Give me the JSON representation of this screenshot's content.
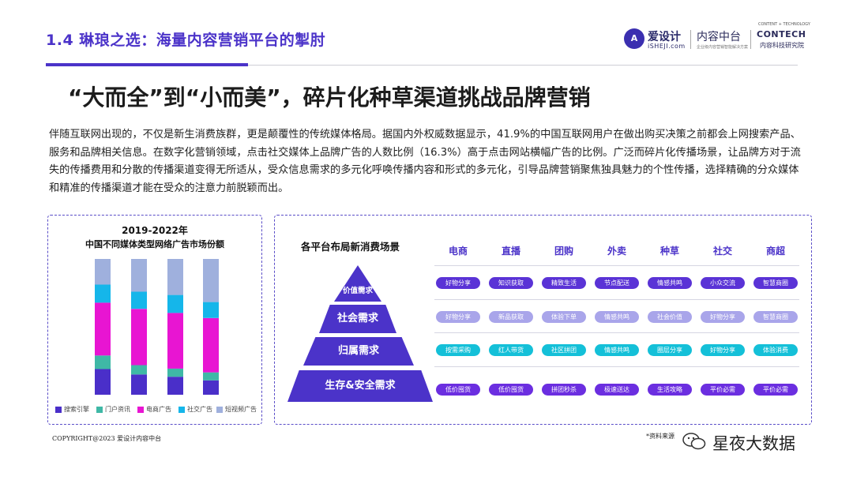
{
  "header": {
    "section_title": "1.4 琳琅之选：海量内容营销平台的掣肘",
    "logos": {
      "aishe_mark": "A",
      "aishe_cn": "爱设计",
      "aishe_en": "iSHEJI.com",
      "nrzt_cn": "内容中台",
      "nrzt_sub": "企业级内容营销智能解决方案",
      "contech_small": "CONTENT + TECHNOLOGY",
      "contech_big": "CONTECH",
      "contech_cn": "内容科技研究院"
    }
  },
  "main_heading": "“大而全”到“小而美”，碎片化种草渠道挑战品牌营销",
  "body_text": "伴随互联网出现的，不仅是新生消费族群，更是颠覆性的传统媒体格局。据国内外权威数据显示，41.9%的中国互联网用户在做出购买决策之前都会上网搜索产品、服务和品牌相关信息。在数字化营销领域，点击社交媒体上品牌广告的人数比例（16.3%）高于点击网站横幅广告的比例。广泛而碎片化传播场景，让品牌方对于流失的传播费用和分散的传播渠道变得无所适从，受众信息需求的多元化呼唤传播内容和形式的多元化，引导品牌营销聚焦独具魅力的个性传播，选择精确的分众媒体和精准的传播渠道才能在受众的注意力前脱颖而出。",
  "chart_data": {
    "type": "bar",
    "stacked": true,
    "title_line1": "2019-2022年",
    "title": "中国不同媒体类型网络广告市场份额",
    "categories": [
      "",
      "",
      "",
      ""
    ],
    "ylim": [
      0,
      100
    ],
    "series": [
      {
        "name": "搜索引擎",
        "color": "#4a2fc9",
        "values": [
          17,
          13,
          11,
          9
        ]
      },
      {
        "name": "门户资讯",
        "color": "#3fb8a6",
        "values": [
          9,
          6,
          5,
          5
        ]
      },
      {
        "name": "电商广告",
        "color": "#e815d2",
        "values": [
          35,
          36,
          34,
          34
        ]
      },
      {
        "name": "社交广告",
        "color": "#15b6ea",
        "values": [
          12,
          11,
          11,
          10
        ]
      },
      {
        "name": "短视频广告",
        "color": "#9fb0dd",
        "values": [
          17,
          21,
          22,
          27
        ]
      }
    ]
  },
  "scenes": {
    "title": "各平台布局新消费场景",
    "pyramid": [
      "价值需求",
      "社会需求",
      "归属需求",
      "生存&安全需求"
    ],
    "columns": [
      "电商",
      "直播",
      "团购",
      "外卖",
      "种草",
      "社交",
      "商超"
    ],
    "rows": [
      {
        "style": "purple",
        "tags": [
          "好物分享",
          "知识获取",
          "精致生活",
          "节点配送",
          "情感共鸣",
          "小众交流",
          "智慧商圈"
        ]
      },
      {
        "style": "lav",
        "tags": [
          "好物分享",
          "新品获取",
          "体验下单",
          "情感共鸣",
          "社会价值",
          "好物分享",
          "智慧商圈"
        ]
      },
      {
        "style": "cyan",
        "tags": [
          "按需采购",
          "红人带货",
          "社区拼团",
          "情感共鸣",
          "圈层分享",
          "好物分享",
          "体验消费"
        ]
      },
      {
        "style": "violet",
        "tags": [
          "低价囤货",
          "低价囤货",
          "拼团秒杀",
          "极速送达",
          "生活攻略",
          "平价必需",
          "平价必需"
        ]
      }
    ]
  },
  "footer": {
    "copyright": "COPYRIGHT@2023  爱设计内容中台",
    "source": "*资料来源",
    "watermark": "星夜大数据"
  }
}
